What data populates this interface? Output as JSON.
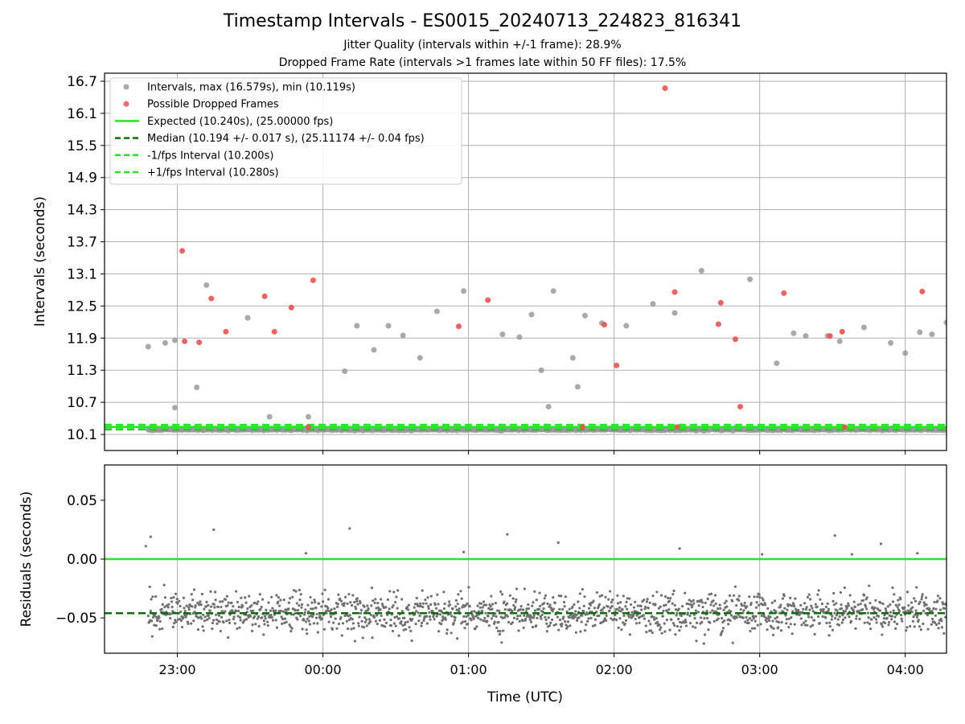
{
  "figure": {
    "title": "Timestamp Intervals - ES0015_20240713_224823_816341",
    "subtitle_jitter": "Jitter Quality (intervals within +/-1 frame): 28.9%",
    "subtitle_dropped": "Dropped Frame Rate (intervals >1 frames late within 50 FF files): 17.5%"
  },
  "colors": {
    "intervals": "#9a9a9a",
    "dropped": "#f0504f",
    "expected": "#22e822",
    "median": "#0a6e0a",
    "residuals": "#707070",
    "grid": "#b0b0b0"
  },
  "chart_data": [
    {
      "type": "scatter",
      "panel": "intervals",
      "ylabel": "Intervals (seconds)",
      "ylim": [
        9.8,
        16.85
      ],
      "yticks": [
        "10.1",
        "10.7",
        "11.3",
        "11.9",
        "12.5",
        "13.1",
        "13.7",
        "14.3",
        "14.9",
        "15.5",
        "16.1",
        "16.7"
      ],
      "grid": true,
      "legend_position": "top-left",
      "legend": [
        "Intervals, max (16.579s), min (10.119s)",
        "Possible Dropped Frames",
        "Expected (10.240s), (25.00000 fps)",
        "Median (10.194 +/- 0.017 s), (25.11174 +/- 0.04 fps)",
        "-1/fps Interval (10.200s)",
        "+1/fps Interval (10.280s)"
      ],
      "reference_lines": {
        "expected": 10.24,
        "median": 10.194,
        "minus_1fps": 10.2,
        "plus_1fps": 10.28
      },
      "series": [
        {
          "name": "Intervals, max (16.579s), min (10.119s)",
          "points": [
            [
              "22:48",
              11.74
            ],
            [
              "22:55",
              11.81
            ],
            [
              "22:59",
              11.86
            ],
            [
              "22:59",
              10.6
            ],
            [
              "23:08",
              10.98
            ],
            [
              "23:12",
              12.89
            ],
            [
              "23:29",
              12.28
            ],
            [
              "23:38",
              10.43
            ],
            [
              "23:54",
              10.43
            ],
            [
              "24:09",
              11.28
            ],
            [
              "24:14",
              12.13
            ],
            [
              "24:21",
              11.68
            ],
            [
              "24:27",
              12.13
            ],
            [
              "24:33",
              11.95
            ],
            [
              "24:40",
              11.53
            ],
            [
              "24:47",
              12.4
            ],
            [
              "24:58",
              12.78
            ],
            [
              "25:14",
              11.97
            ],
            [
              "25:21",
              11.92
            ],
            [
              "25:26",
              12.34
            ],
            [
              "25:30",
              11.3
            ],
            [
              "25:33",
              10.62
            ],
            [
              "25:35",
              12.78
            ],
            [
              "25:43",
              11.53
            ],
            [
              "25:45",
              10.99
            ],
            [
              "25:48",
              12.32
            ],
            [
              "25:55",
              12.18
            ],
            [
              "26:05",
              12.13
            ],
            [
              "26:16",
              12.54
            ],
            [
              "26:25",
              12.37
            ],
            [
              "26:36",
              13.16
            ],
            [
              "26:56",
              13.0
            ],
            [
              "27:07",
              11.43
            ],
            [
              "27:14",
              11.99
            ],
            [
              "27:19",
              11.94
            ],
            [
              "27:28",
              11.94
            ],
            [
              "27:33",
              11.84
            ],
            [
              "27:43",
              12.1
            ],
            [
              "27:54",
              11.81
            ],
            [
              "28:00",
              11.62
            ],
            [
              "28:06",
              12.01
            ],
            [
              "28:11",
              11.97
            ],
            [
              "28:17",
              12.19
            ]
          ]
        },
        {
          "name": "Possible Dropped Frames",
          "points": [
            [
              "23:02",
              13.53
            ],
            [
              "23:03",
              11.84
            ],
            [
              "23:09",
              11.82
            ],
            [
              "23:14",
              12.64
            ],
            [
              "23:20",
              12.02
            ],
            [
              "23:36",
              12.68
            ],
            [
              "23:40",
              12.02
            ],
            [
              "23:47",
              12.47
            ],
            [
              "23:56",
              12.98
            ],
            [
              "24:56",
              12.12
            ],
            [
              "25:08",
              12.61
            ],
            [
              "25:56",
              12.15
            ],
            [
              "26:01",
              11.39
            ],
            [
              "26:21",
              16.57
            ],
            [
              "26:25",
              12.76
            ],
            [
              "26:43",
              12.16
            ],
            [
              "26:44",
              12.56
            ],
            [
              "26:50",
              11.88
            ],
            [
              "26:52",
              10.62
            ],
            [
              "27:10",
              12.74
            ],
            [
              "27:29",
              11.94
            ],
            [
              "27:34",
              12.02
            ],
            [
              "28:07",
              12.77
            ]
          ]
        }
      ]
    },
    {
      "type": "scatter",
      "panel": "residuals",
      "xlabel": "Time (UTC)",
      "ylabel": "Residuals (seconds)",
      "ylim": [
        -0.08,
        0.08
      ],
      "yticks": [
        "0.05",
        "0.00",
        "−0.05"
      ],
      "xlim": [
        "22:30",
        "28:17"
      ],
      "xticks": [
        "23:00",
        "00:00",
        "01:00",
        "02:00",
        "03:00",
        "04:00"
      ],
      "grid": true,
      "reference_lines": {
        "zero": 0.0,
        "median": -0.046
      },
      "range": {
        "min": -0.08,
        "max": 0.027
      },
      "series": [
        {
          "name": "Residuals",
          "points": [
            [
              "22:47",
              0.011
            ],
            [
              "22:49",
              0.019
            ],
            [
              "23:15",
              0.025
            ],
            [
              "23:53",
              0.005
            ],
            [
              "24:11",
              0.026
            ],
            [
              "24:58",
              0.006
            ],
            [
              "25:16",
              0.021
            ],
            [
              "25:37",
              0.014
            ],
            [
              "26:27",
              0.009
            ],
            [
              "27:01",
              0.004
            ],
            [
              "27:31",
              0.02
            ],
            [
              "27:38",
              0.004
            ],
            [
              "27:50",
              0.013
            ],
            [
              "28:05",
              0.005
            ]
          ]
        }
      ]
    }
  ]
}
